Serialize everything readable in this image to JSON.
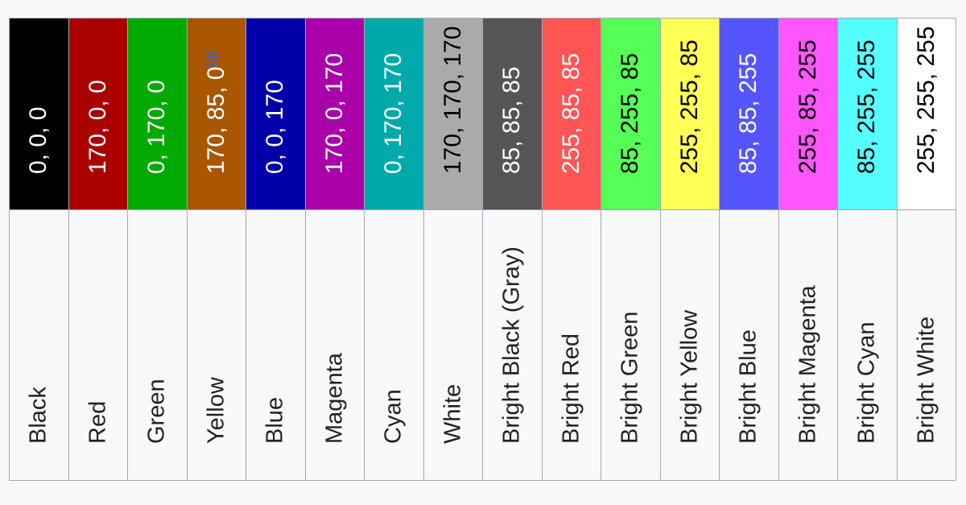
{
  "colors": [
    {
      "name": "Black",
      "rgb": "0, 0, 0",
      "bg": "#000000",
      "fg": "#ffffff"
    },
    {
      "name": "Red",
      "rgb": "170, 0, 0",
      "bg": "#aa0000",
      "fg": "#ffffff"
    },
    {
      "name": "Green",
      "rgb": "0, 170, 0",
      "bg": "#00aa00",
      "fg": "#ffffff"
    },
    {
      "name": "Yellow",
      "rgb": "170, 85, 0",
      "bg": "#aa5500",
      "fg": "#ffffff",
      "note": "[g]"
    },
    {
      "name": "Blue",
      "rgb": "0, 0, 170",
      "bg": "#0000aa",
      "fg": "#ffffff"
    },
    {
      "name": "Magenta",
      "rgb": "170, 0, 170",
      "bg": "#aa00aa",
      "fg": "#ffffff"
    },
    {
      "name": "Cyan",
      "rgb": "0, 170, 170",
      "bg": "#00aaaa",
      "fg": "#ffffff"
    },
    {
      "name": "White",
      "rgb": "170, 170, 170",
      "bg": "#aaaaaa",
      "fg": "#000000"
    },
    {
      "name": "Bright Black (Gray)",
      "rgb": "85, 85, 85",
      "bg": "#555555",
      "fg": "#ffffff"
    },
    {
      "name": "Bright Red",
      "rgb": "255, 85, 85",
      "bg": "#ff5555",
      "fg": "#ffffff"
    },
    {
      "name": "Bright Green",
      "rgb": "85, 255, 85",
      "bg": "#55ff55",
      "fg": "#000000"
    },
    {
      "name": "Bright Yellow",
      "rgb": "255, 255, 85",
      "bg": "#ffff55",
      "fg": "#000000"
    },
    {
      "name": "Bright Blue",
      "rgb": "85, 85, 255",
      "bg": "#5555ff",
      "fg": "#ffffff"
    },
    {
      "name": "Bright Magenta",
      "rgb": "255, 85, 255",
      "bg": "#ff55ff",
      "fg": "#000000"
    },
    {
      "name": "Bright Cyan",
      "rgb": "85, 255, 255",
      "bg": "#55ffff",
      "fg": "#000000"
    },
    {
      "name": "Bright White",
      "rgb": "255, 255, 255",
      "bg": "#ffffff",
      "fg": "#000000"
    }
  ]
}
